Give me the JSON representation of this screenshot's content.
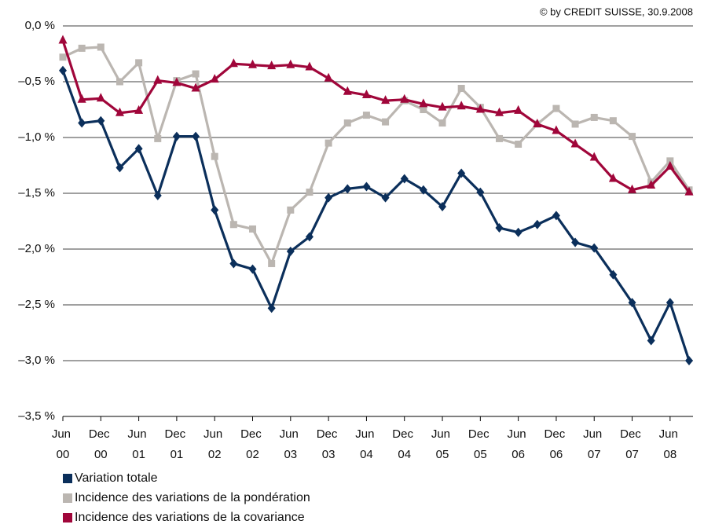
{
  "chart_data": {
    "type": "line",
    "annotation": "© by CREDIT SUISSE, 30.9.2008",
    "categories": [
      "Jun 00",
      null,
      "Dec 00",
      null,
      "Jun 01",
      null,
      "Dec 01",
      null,
      "Jun 02",
      null,
      "Dec 02",
      null,
      "Jun 03",
      null,
      "Dec 03",
      null,
      "Jun 04",
      null,
      "Dec 04",
      null,
      "Jun 05",
      null,
      "Dec 05",
      null,
      "Jun 06",
      null,
      "Dec 06",
      null,
      "Jun 07",
      null,
      "Dec 07",
      null,
      "Jun 08",
      null
    ],
    "series": [
      {
        "name": "Variation totale",
        "color": "#0b2f5b",
        "marker": "diamond",
        "values": [
          -0.4,
          -0.87,
          -0.85,
          -1.27,
          -1.1,
          -1.52,
          -0.99,
          -0.99,
          -1.65,
          -2.13,
          -2.18,
          -2.53,
          -2.02,
          -1.89,
          -1.54,
          -1.46,
          -1.44,
          -1.54,
          -1.37,
          -1.47,
          -1.62,
          -1.32,
          -1.49,
          -1.81,
          -1.85,
          -1.78,
          -1.7,
          -1.94,
          -1.99,
          -2.23,
          -2.48,
          -2.82,
          -2.48,
          -3.0
        ]
      },
      {
        "name": "Incidence des variations de la pondération",
        "color": "#bbb6b1",
        "marker": "square",
        "values": [
          -0.28,
          -0.2,
          -0.19,
          -0.5,
          -0.33,
          -1.01,
          -0.49,
          -0.43,
          -1.17,
          -1.78,
          -1.82,
          -2.13,
          -1.65,
          -1.49,
          -1.05,
          -0.87,
          -0.8,
          -0.86,
          -0.67,
          -0.75,
          -0.87,
          -0.56,
          -0.73,
          -1.01,
          -1.06,
          -0.88,
          -0.74,
          -0.88,
          -0.82,
          -0.85,
          -0.99,
          -1.4,
          -1.21,
          -1.47
        ]
      },
      {
        "name": "Incidence des variations de la covariance",
        "color": "#a0063a",
        "marker": "triangle",
        "values": [
          -0.13,
          -0.66,
          -0.65,
          -0.78,
          -0.76,
          -0.49,
          -0.51,
          -0.56,
          -0.48,
          -0.34,
          -0.35,
          -0.36,
          -0.35,
          -0.37,
          -0.47,
          -0.59,
          -0.62,
          -0.67,
          -0.66,
          -0.7,
          -0.73,
          -0.72,
          -0.75,
          -0.78,
          -0.76,
          -0.88,
          -0.94,
          -1.06,
          -1.18,
          -1.37,
          -1.47,
          -1.43,
          -1.26,
          -1.49
        ]
      }
    ],
    "ylim": [
      -3.5,
      0
    ],
    "yticks": [
      {
        "value": 0,
        "label": "0,0 %"
      },
      {
        "value": -0.5,
        "label": "–0,5 %"
      },
      {
        "value": -1.0,
        "label": "–1,0 %"
      },
      {
        "value": -1.5,
        "label": "–1,5 %"
      },
      {
        "value": -2.0,
        "label": "–2,0 %"
      },
      {
        "value": -2.5,
        "label": "–2,5 %"
      },
      {
        "value": -3.0,
        "label": "–3,0 %"
      },
      {
        "value": -3.5,
        "label": "–3,5 %"
      }
    ],
    "grid": true,
    "legend": "bottom"
  }
}
